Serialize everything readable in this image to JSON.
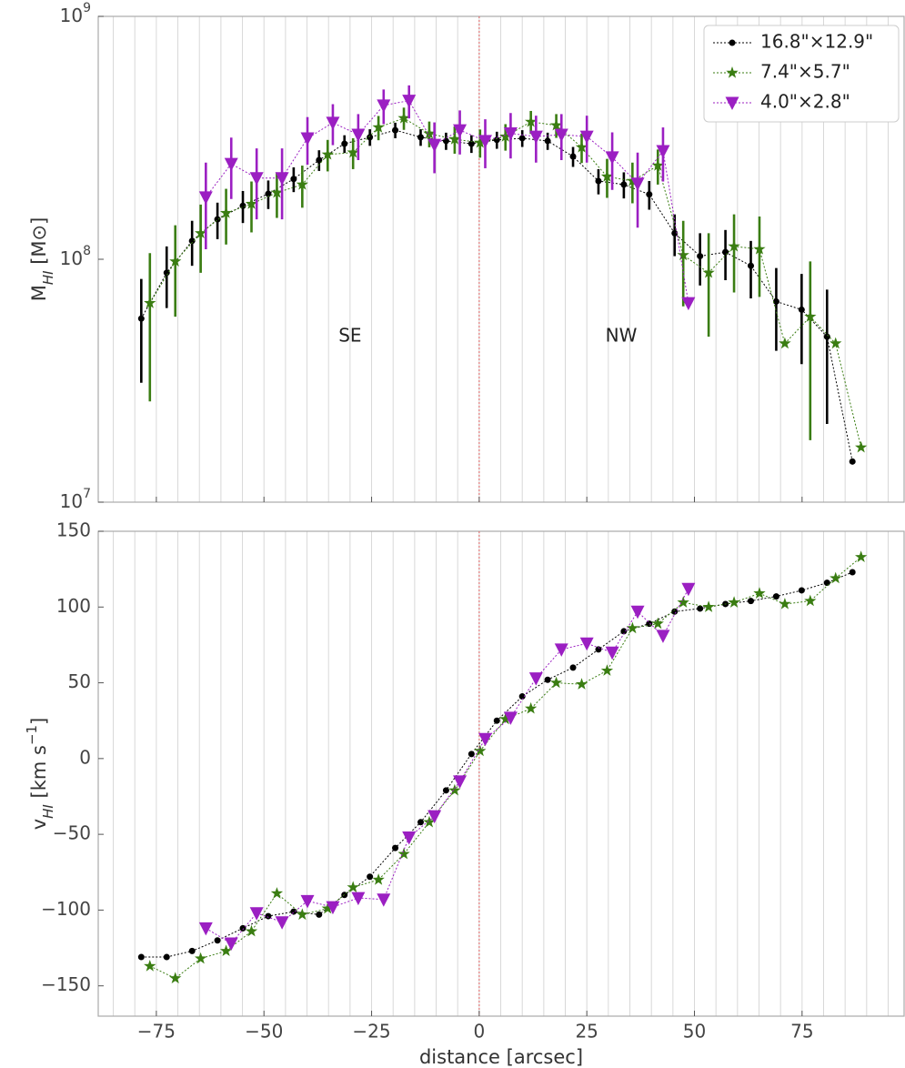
{
  "chart_data": [
    {
      "type": "line",
      "log_y": true,
      "xlim": [
        -88.5,
        98.7
      ],
      "ylim": [
        10000000,
        1000000000
      ],
      "xticks": [
        -75,
        -50,
        -25,
        0,
        25,
        50,
        75
      ],
      "show_xtick_labels": false,
      "minor_xticks": [
        -85,
        -80,
        -75,
        -70,
        -65,
        -60,
        -55,
        -50,
        -45,
        -40,
        -35,
        -30,
        -25,
        -20,
        -15,
        -10,
        -5,
        0,
        5,
        10,
        15,
        20,
        25,
        30,
        35,
        40,
        45,
        50,
        55,
        60,
        65,
        70,
        75,
        80,
        85,
        90,
        95
      ],
      "yticks": [
        {
          "value": 10000000,
          "base": "10",
          "exp": "7"
        },
        {
          "value": 100000000,
          "base": "10",
          "exp": "8"
        },
        {
          "value": 1000000000,
          "base": "10",
          "exp": "9"
        }
      ],
      "ylabel": [
        {
          "text": "M"
        },
        {
          "text": "HI",
          "style": "sub"
        },
        {
          "text": " [M⊙]"
        }
      ],
      "vline": 0,
      "vline_color": "#e06060",
      "legend": "upper right",
      "annotations": [
        {
          "text": "SE",
          "x": -30,
          "y": 48000000
        },
        {
          "text": "NW",
          "x": 33,
          "y": 48000000
        }
      ],
      "series": [
        {
          "name": "16.8\"×12.9\"",
          "color": "#000000",
          "marker": "o",
          "x": [
            -78.5,
            -72.6,
            -66.7,
            -60.8,
            -54.9,
            -49.0,
            -43.1,
            -37.2,
            -31.3,
            -25.4,
            -19.5,
            -13.6,
            -7.7,
            -1.8,
            4.1,
            10.0,
            15.9,
            21.8,
            27.7,
            33.6,
            39.5,
            45.4,
            51.3,
            57.2,
            63.1,
            69.0,
            74.9,
            80.8,
            86.7
          ],
          "values": [
            57000000.0,
            88000000.0,
            119000000.0,
            146000000.0,
            166000000.0,
            186000000.0,
            214000000.0,
            256000000.0,
            299000000.0,
            318000000.0,
            340000000.0,
            318000000.0,
            307000000.0,
            299000000.0,
            310000000.0,
            315000000.0,
            307000000.0,
            265000000.0,
            210000000.0,
            203000000.0,
            185000000.0,
            128000000.0,
            103000000.0,
            107000000.0,
            94000000.0,
            67000000.0,
            62000000.0,
            48000000.0,
            14700000.0
          ],
          "errors": [
            26000000.0,
            25000000.0,
            25000000.0,
            25000000.0,
            25000000.0,
            25000000.0,
            25000000.0,
            25000000.0,
            25000000.0,
            25000000.0,
            25000000.0,
            25000000.0,
            25000000.0,
            25000000.0,
            25000000.0,
            25000000.0,
            25000000.0,
            25000000.0,
            25000000.0,
            25000000.0,
            25000000.0,
            25000000.0,
            25000000.0,
            25000000.0,
            25000000.0,
            25000000.0,
            25000000.0,
            27000000.0,
            null
          ]
        },
        {
          "name": "7.4\"×5.7\"",
          "color": "#3a7d12",
          "marker": "*",
          "x": [
            -76.5,
            -70.6,
            -64.7,
            -58.8,
            -52.9,
            -47.0,
            -41.1,
            -35.2,
            -29.3,
            -23.4,
            -17.5,
            -11.6,
            -5.7,
            0.2,
            6.1,
            12.0,
            17.9,
            23.8,
            29.7,
            35.6,
            41.5,
            47.4,
            53.3,
            59.2,
            65.1,
            71.0,
            76.9,
            82.8,
            88.7
          ],
          "values": [
            66000000.0,
            98000000.0,
            128000000.0,
            155000000.0,
            169000000.0,
            188000000.0,
            203000000.0,
            270000000.0,
            275000000.0,
            349000000.0,
            381000000.0,
            329000000.0,
            312000000.0,
            302000000.0,
            320000000.0,
            368000000.0,
            356000000.0,
            289000000.0,
            219000000.0,
            210000000.0,
            243000000.0,
            104000000.0,
            88000000.0,
            113000000.0,
            110000000.0,
            45000000.0,
            58000000.0,
            45000000.0,
            16800000.0
          ],
          "errors": [
            40000000.0,
            40000000.0,
            40000000.0,
            40000000.0,
            40000000.0,
            40000000.0,
            40000000.0,
            40000000.0,
            40000000.0,
            40000000.0,
            40000000.0,
            40000000.0,
            40000000.0,
            40000000.0,
            40000000.0,
            40000000.0,
            40000000.0,
            40000000.0,
            40000000.0,
            40000000.0,
            40000000.0,
            40000000.0,
            40000000.0,
            40000000.0,
            40000000.0,
            null,
            40000000.0,
            null,
            null
          ]
        },
        {
          "name": "4.0\"×2.8\"",
          "color": "#9b1fc2",
          "marker": "v",
          "x": [
            -63.5,
            -57.6,
            -51.7,
            -45.8,
            -39.9,
            -34.0,
            -28.1,
            -22.2,
            -16.3,
            -10.4,
            -4.5,
            1.4,
            7.3,
            13.2,
            19.1,
            25.0,
            30.9,
            36.8,
            42.7,
            48.6
          ],
          "values": [
            180000000.0,
            247000000.0,
            216000000.0,
            216000000.0,
            315000000.0,
            365000000.0,
            326000000.0,
            430000000.0,
            450000000.0,
            296000000.0,
            340000000.0,
            307000000.0,
            330000000.0,
            320000000.0,
            326000000.0,
            320000000.0,
            263000000.0,
            205000000.0,
            279000000.0,
            66000000.0
          ],
          "errors": [
            70000000.0,
            70000000.0,
            70000000.0,
            70000000.0,
            70000000.0,
            70000000.0,
            70000000.0,
            70000000.0,
            70000000.0,
            70000000.0,
            70000000.0,
            70000000.0,
            70000000.0,
            70000000.0,
            70000000.0,
            70000000.0,
            70000000.0,
            70000000.0,
            70000000.0,
            null
          ]
        }
      ]
    },
    {
      "type": "line",
      "log_y": false,
      "xlim": [
        -88.5,
        98.7
      ],
      "ylim": [
        -170,
        150
      ],
      "xticks": [
        {
          "value": -75,
          "label": "−75"
        },
        {
          "value": -50,
          "label": "−50"
        },
        {
          "value": -25,
          "label": "−25"
        },
        0,
        25,
        50,
        75
      ],
      "show_xtick_labels": true,
      "minor_xticks": [
        -85,
        -80,
        -75,
        -70,
        -65,
        -60,
        -55,
        -50,
        -45,
        -40,
        -35,
        -30,
        -25,
        -20,
        -15,
        -10,
        -5,
        0,
        5,
        10,
        15,
        20,
        25,
        30,
        35,
        40,
        45,
        50,
        55,
        60,
        65,
        70,
        75,
        80,
        85,
        90,
        95
      ],
      "yticks": [
        {
          "value": -150,
          "label": "−150"
        },
        {
          "value": -100,
          "label": "−100"
        },
        {
          "value": -50,
          "label": "−50"
        },
        0,
        50,
        100,
        150
      ],
      "xlabel": "distance [arcsec]",
      "ylabel": [
        {
          "text": "v"
        },
        {
          "text": "HI",
          "style": "sub"
        },
        {
          "text": " [km s"
        },
        {
          "text": "−1",
          "style": "sup"
        },
        {
          "text": "]"
        }
      ],
      "vline": 0,
      "vline_color": "#e06060",
      "series": [
        {
          "name": "16.8\"×12.9\"",
          "color": "#000000",
          "marker": "o",
          "x": [
            -78.5,
            -72.6,
            -66.7,
            -60.8,
            -54.9,
            -49.0,
            -43.1,
            -37.2,
            -31.3,
            -25.4,
            -19.5,
            -13.6,
            -7.7,
            -1.8,
            4.1,
            10.0,
            15.9,
            21.8,
            27.7,
            33.6,
            39.5,
            45.4,
            51.3,
            57.2,
            63.1,
            69.0,
            74.9,
            80.8,
            86.7
          ],
          "values": [
            -131,
            -131,
            -127,
            -120,
            -112,
            -104,
            -101,
            -103,
            -90,
            -78,
            -59,
            -42,
            -21,
            3,
            25,
            41,
            52,
            60,
            72,
            84,
            89,
            97,
            99,
            102,
            104,
            107,
            111,
            116,
            123
          ]
        },
        {
          "name": "7.4\"×5.7\"",
          "color": "#3a7d12",
          "marker": "*",
          "x": [
            -76.5,
            -70.6,
            -64.7,
            -58.8,
            -52.9,
            -47.0,
            -41.1,
            -35.2,
            -29.3,
            -23.4,
            -17.5,
            -11.6,
            -5.7,
            0.2,
            6.1,
            12.0,
            17.9,
            23.8,
            29.7,
            35.6,
            41.5,
            47.4,
            53.3,
            59.2,
            65.1,
            71.0,
            76.9,
            82.8,
            88.7
          ],
          "values": [
            -137,
            -145,
            -132,
            -127,
            -114,
            -89,
            -103,
            -99,
            -85,
            -80,
            -63,
            -42,
            -21,
            5,
            26,
            33,
            50,
            49,
            58,
            86,
            89,
            103,
            100,
            103,
            109,
            102,
            104,
            119,
            133
          ]
        },
        {
          "name": "4.0\"×2.8\"",
          "color": "#9b1fc2",
          "marker": "v",
          "x": [
            -63.5,
            -57.6,
            -51.7,
            -45.8,
            -39.9,
            -34.0,
            -28.1,
            -22.2,
            -16.3,
            -10.4,
            -4.5,
            1.4,
            7.3,
            13.2,
            19.1,
            25.0,
            30.9,
            36.8,
            42.7,
            48.6
          ],
          "values": [
            -112,
            -122,
            -102,
            -108,
            -94,
            -98,
            -92,
            -93,
            -52,
            -38,
            -15,
            13,
            27,
            53,
            72,
            76,
            70,
            97,
            81,
            112
          ]
        }
      ]
    }
  ]
}
